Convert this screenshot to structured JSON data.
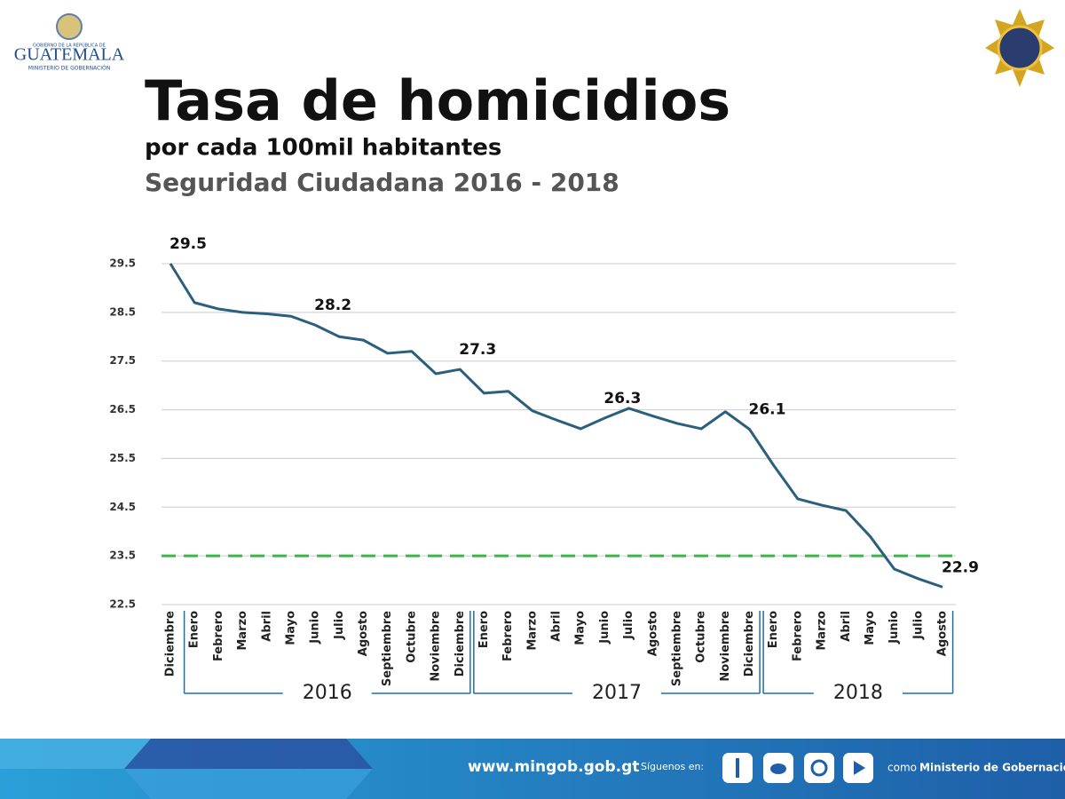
{
  "header": {
    "logo_top": "GOBIERNO DE LA REPÚBLICA DE",
    "logo_name": "GUATEMALA",
    "logo_bottom": "MINISTERIO DE GOBERNACIÓN"
  },
  "chart_data": {
    "type": "line",
    "title": "Tasa de homicidios",
    "subtitle": "por cada 100mil habitantes",
    "subtitle2": "Seguridad Ciudadana 2016 - 2018",
    "categories": [
      "Diciembre",
      "Enero",
      "Febrero",
      "Marzo",
      "Abril",
      "Mayo",
      "Junio",
      "Julio",
      "Agosto",
      "Septiembre",
      "Octubre",
      "Noviembre",
      "Diciembre",
      "Enero",
      "Febrero",
      "Marzo",
      "Abril",
      "Mayo",
      "Junio",
      "Julio",
      "Agosto",
      "Septiembre",
      "Octubre",
      "Noviembre",
      "Diciembre",
      "Enero",
      "Febrero",
      "Marzo",
      "Abril",
      "Mayo",
      "Junio",
      "Julio",
      "Agosto"
    ],
    "values": [
      29.5,
      28.7,
      28.57,
      28.5,
      28.47,
      28.42,
      28.24,
      28.0,
      27.93,
      27.66,
      27.7,
      27.24,
      27.33,
      26.84,
      26.88,
      26.48,
      26.29,
      26.11,
      26.33,
      26.53,
      26.37,
      26.22,
      26.11,
      26.46,
      26.1,
      25.36,
      24.67,
      24.54,
      24.43,
      23.9,
      23.23,
      23.03,
      22.86
    ],
    "value_labels": [
      "29.5",
      null,
      null,
      null,
      null,
      null,
      "28.2",
      null,
      null,
      null,
      null,
      null,
      "27.3",
      null,
      null,
      null,
      null,
      null,
      "26.3",
      null,
      null,
      null,
      null,
      null,
      "26.1",
      null,
      null,
      null,
      null,
      null,
      null,
      null,
      "22.9"
    ],
    "color": "#2b5f7e",
    "reference_line": {
      "value": 23.5,
      "color": "#3bb54a"
    },
    "ylim": [
      22.5,
      29.5
    ],
    "yticks": [
      22.5,
      23.5,
      24.5,
      25.5,
      26.5,
      27.5,
      28.5,
      29.5
    ],
    "grid": true,
    "groups": [
      {
        "label": "2016",
        "first": 1,
        "last": 12
      },
      {
        "label": "2017",
        "first": 13,
        "last": 24
      },
      {
        "label": "2018",
        "first": 25,
        "last": 32
      }
    ]
  },
  "footer": {
    "url": "www.mingob.gob.gt",
    "follow": "Síguenos en:",
    "as": "como",
    "account": "Ministerio de Gobernación"
  }
}
